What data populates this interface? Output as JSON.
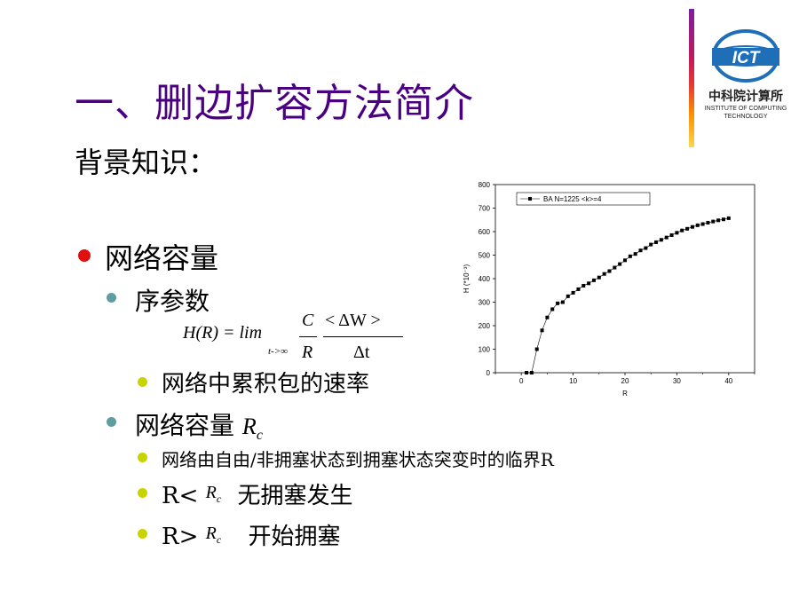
{
  "slide": {
    "title": "一、删边扩容方法简介",
    "background_label": "背景知识："
  },
  "bullets": {
    "level1_network_capacity": "网络容量",
    "order_param": "序参数",
    "formula": {
      "lhs": "H(R) = lim",
      "lim_sub": "t->∞",
      "num_C": "C",
      "den_R": "R",
      "num_W": "< ΔW >",
      "den_t": "Δt"
    },
    "accumulation_rate": "网络中累积包的速率",
    "capacity_rc_label": "网络容量",
    "rc_symbol": "R",
    "rc_sub": "c",
    "critical_desc": "网络由自由/非拥塞状态到拥塞状态突变时的临界R",
    "less_prefix": "R<",
    "less_text": "无拥塞发生",
    "greater_prefix": "R>",
    "greater_text": "开始拥塞"
  },
  "logo": {
    "abbr": "ICT",
    "cn_name": "中科院计算所",
    "en_line1": "INSTITUTE OF COMPUTING",
    "en_line2": "TECHNOLOGY"
  },
  "colors": {
    "title": "#4b0082",
    "bullet_red": "#e01010",
    "bullet_teal": "#5f9ea0",
    "bullet_yellow": "#c8d400"
  },
  "chart_data": {
    "type": "scatter",
    "xlabel": "R",
    "ylabel": "H (*10⁻³)",
    "xlim": [
      -5,
      45
    ],
    "ylim": [
      0,
      800
    ],
    "xticks": [
      0,
      10,
      20,
      30,
      40
    ],
    "yticks": [
      0,
      100,
      200,
      300,
      400,
      500,
      600,
      700,
      800
    ],
    "legend": "top-left",
    "series": [
      {
        "name": "BA N=1225 <k>=4",
        "x": [
          1,
          2,
          3,
          4,
          5,
          6,
          7,
          8,
          9,
          10,
          11,
          12,
          13,
          14,
          15,
          16,
          17,
          18,
          19,
          20,
          21,
          22,
          23,
          24,
          25,
          26,
          27,
          28,
          29,
          30,
          31,
          32,
          33,
          34,
          35,
          36,
          37,
          38,
          39,
          40
        ],
        "y": [
          0,
          0,
          100,
          180,
          235,
          270,
          295,
          300,
          325,
          340,
          355,
          370,
          380,
          393,
          405,
          420,
          432,
          447,
          462,
          478,
          495,
          505,
          520,
          530,
          545,
          555,
          565,
          575,
          585,
          595,
          605,
          612,
          620,
          627,
          632,
          638,
          643,
          648,
          652,
          657
        ]
      }
    ]
  }
}
